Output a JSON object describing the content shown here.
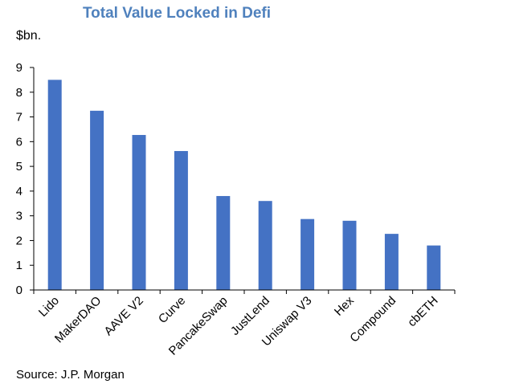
{
  "chart_data": {
    "type": "bar",
    "title": "Total Value Locked in Defi",
    "ylabel": "$bn.",
    "xlabel": "",
    "categories": [
      "Lido",
      "MakerDAO",
      "AAVE V2",
      "Curve",
      "PancakeSwap",
      "JustLend",
      "Uniswap V3",
      "Hex",
      "Compound",
      "cbETH"
    ],
    "values": [
      8.5,
      7.25,
      6.27,
      5.62,
      3.8,
      3.6,
      2.87,
      2.8,
      2.27,
      1.8
    ],
    "ylim": [
      0,
      9
    ],
    "yticks": [
      0,
      1,
      2,
      3,
      4,
      5,
      6,
      7,
      8,
      9
    ],
    "grid": false,
    "bar_color": "#4472c4",
    "axis_color": "#000000"
  },
  "source": "Source: J.P. Morgan"
}
